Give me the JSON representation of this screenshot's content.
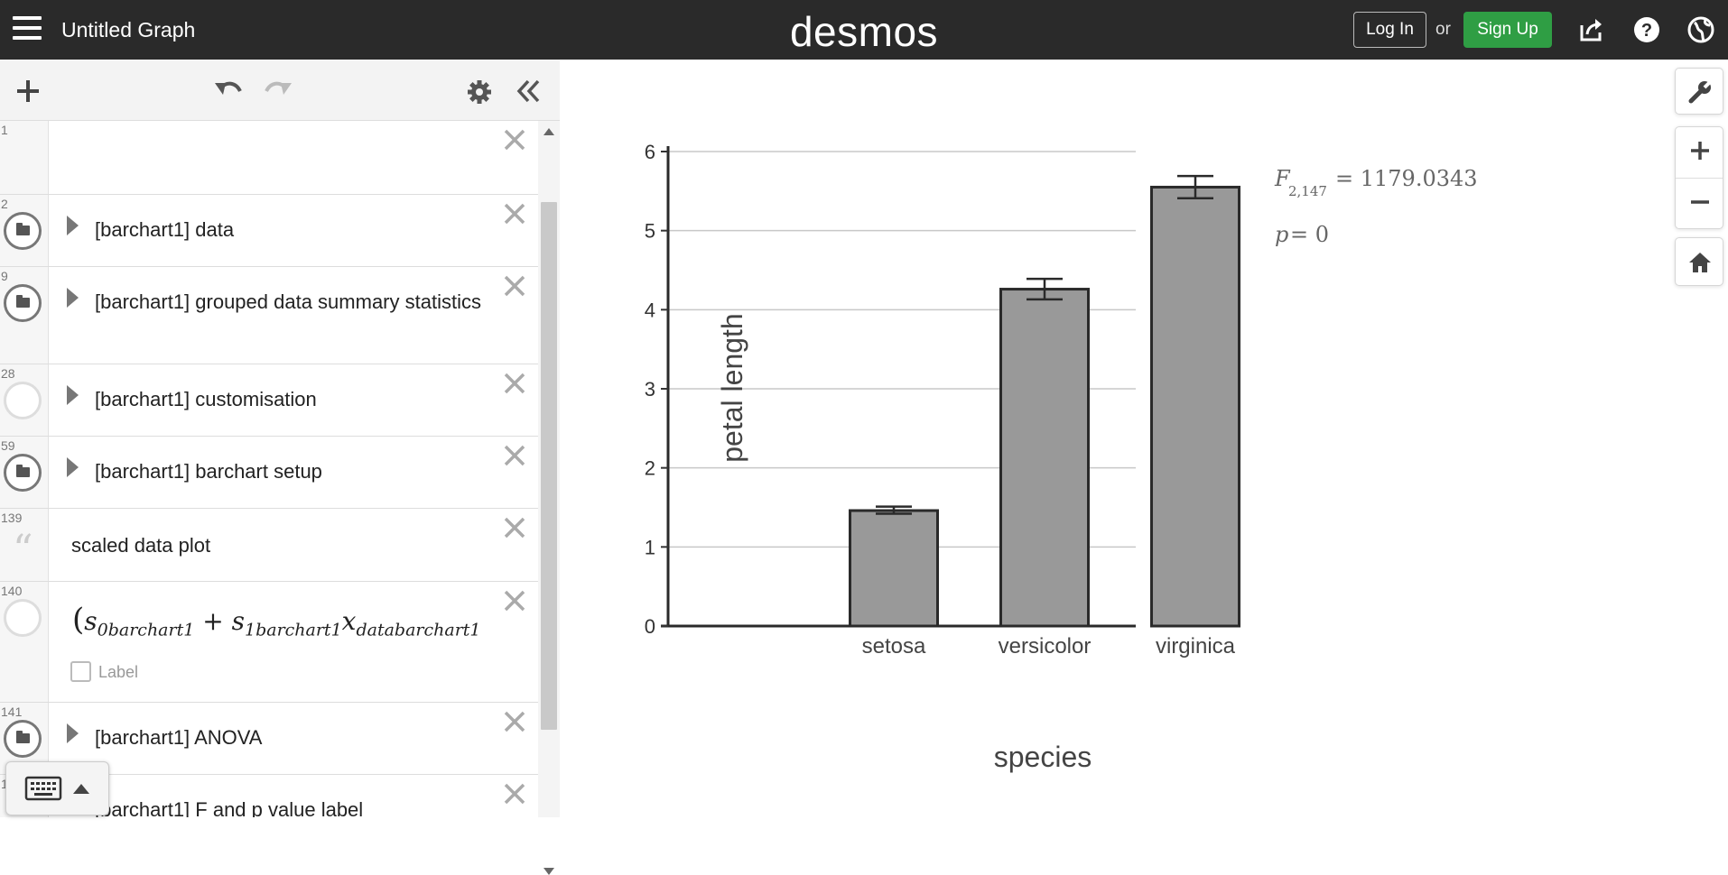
{
  "header": {
    "title": "Untitled Graph",
    "brand": "desmos",
    "login_label": "Log In",
    "or_label": "or",
    "signup_label": "Sign Up",
    "icons": [
      "hamburger-menu-icon",
      "share-icon",
      "help-icon",
      "language-globe-icon"
    ],
    "signup_color": "#2f9e44"
  },
  "toolbar": {
    "icons": [
      "add-icon",
      "undo-icon",
      "redo-icon",
      "settings-gear-icon",
      "collapse-chevrons-icon"
    ]
  },
  "expressions": [
    {
      "num": "1",
      "kind": "expression",
      "text": ""
    },
    {
      "num": "2",
      "kind": "folder",
      "text": "[barchart1] data"
    },
    {
      "num": "9",
      "kind": "folder",
      "text": "[barchart1] grouped data summary statistics"
    },
    {
      "num": "28",
      "kind": "folder-hidden",
      "text": "[barchart1] customisation"
    },
    {
      "num": "59",
      "kind": "folder",
      "text": "[barchart1] barchart setup"
    },
    {
      "num": "139",
      "kind": "note",
      "text": "scaled data plot"
    },
    {
      "num": "140",
      "kind": "expression",
      "label": "Label"
    },
    {
      "num": "141",
      "kind": "folder",
      "text": "[barchart1] ANOVA"
    },
    {
      "num": "1",
      "kind": "folder",
      "text": "[barchart1] F and p value label"
    }
  ],
  "graph_controls": [
    "wrench-icon",
    "zoom-in-icon",
    "zoom-out-icon",
    "home-icon"
  ],
  "annotations": {
    "f_stat": "= 1179.0343",
    "f_sub": "2,147",
    "p_val": "= 0"
  },
  "chart_data": {
    "type": "bar",
    "categories": [
      "setosa",
      "versicolor",
      "virginica"
    ],
    "values": [
      1.46,
      4.26,
      5.55
    ],
    "error_low": [
      1.42,
      4.13,
      5.41
    ],
    "error_high": [
      1.51,
      4.39,
      5.69
    ],
    "xlabel": "species",
    "ylabel": "petal length",
    "ylim": [
      0,
      6
    ],
    "yticks": [
      "0",
      "1",
      "2",
      "3",
      "4",
      "5",
      "6"
    ],
    "grid": true,
    "bar_color": "#999999"
  }
}
